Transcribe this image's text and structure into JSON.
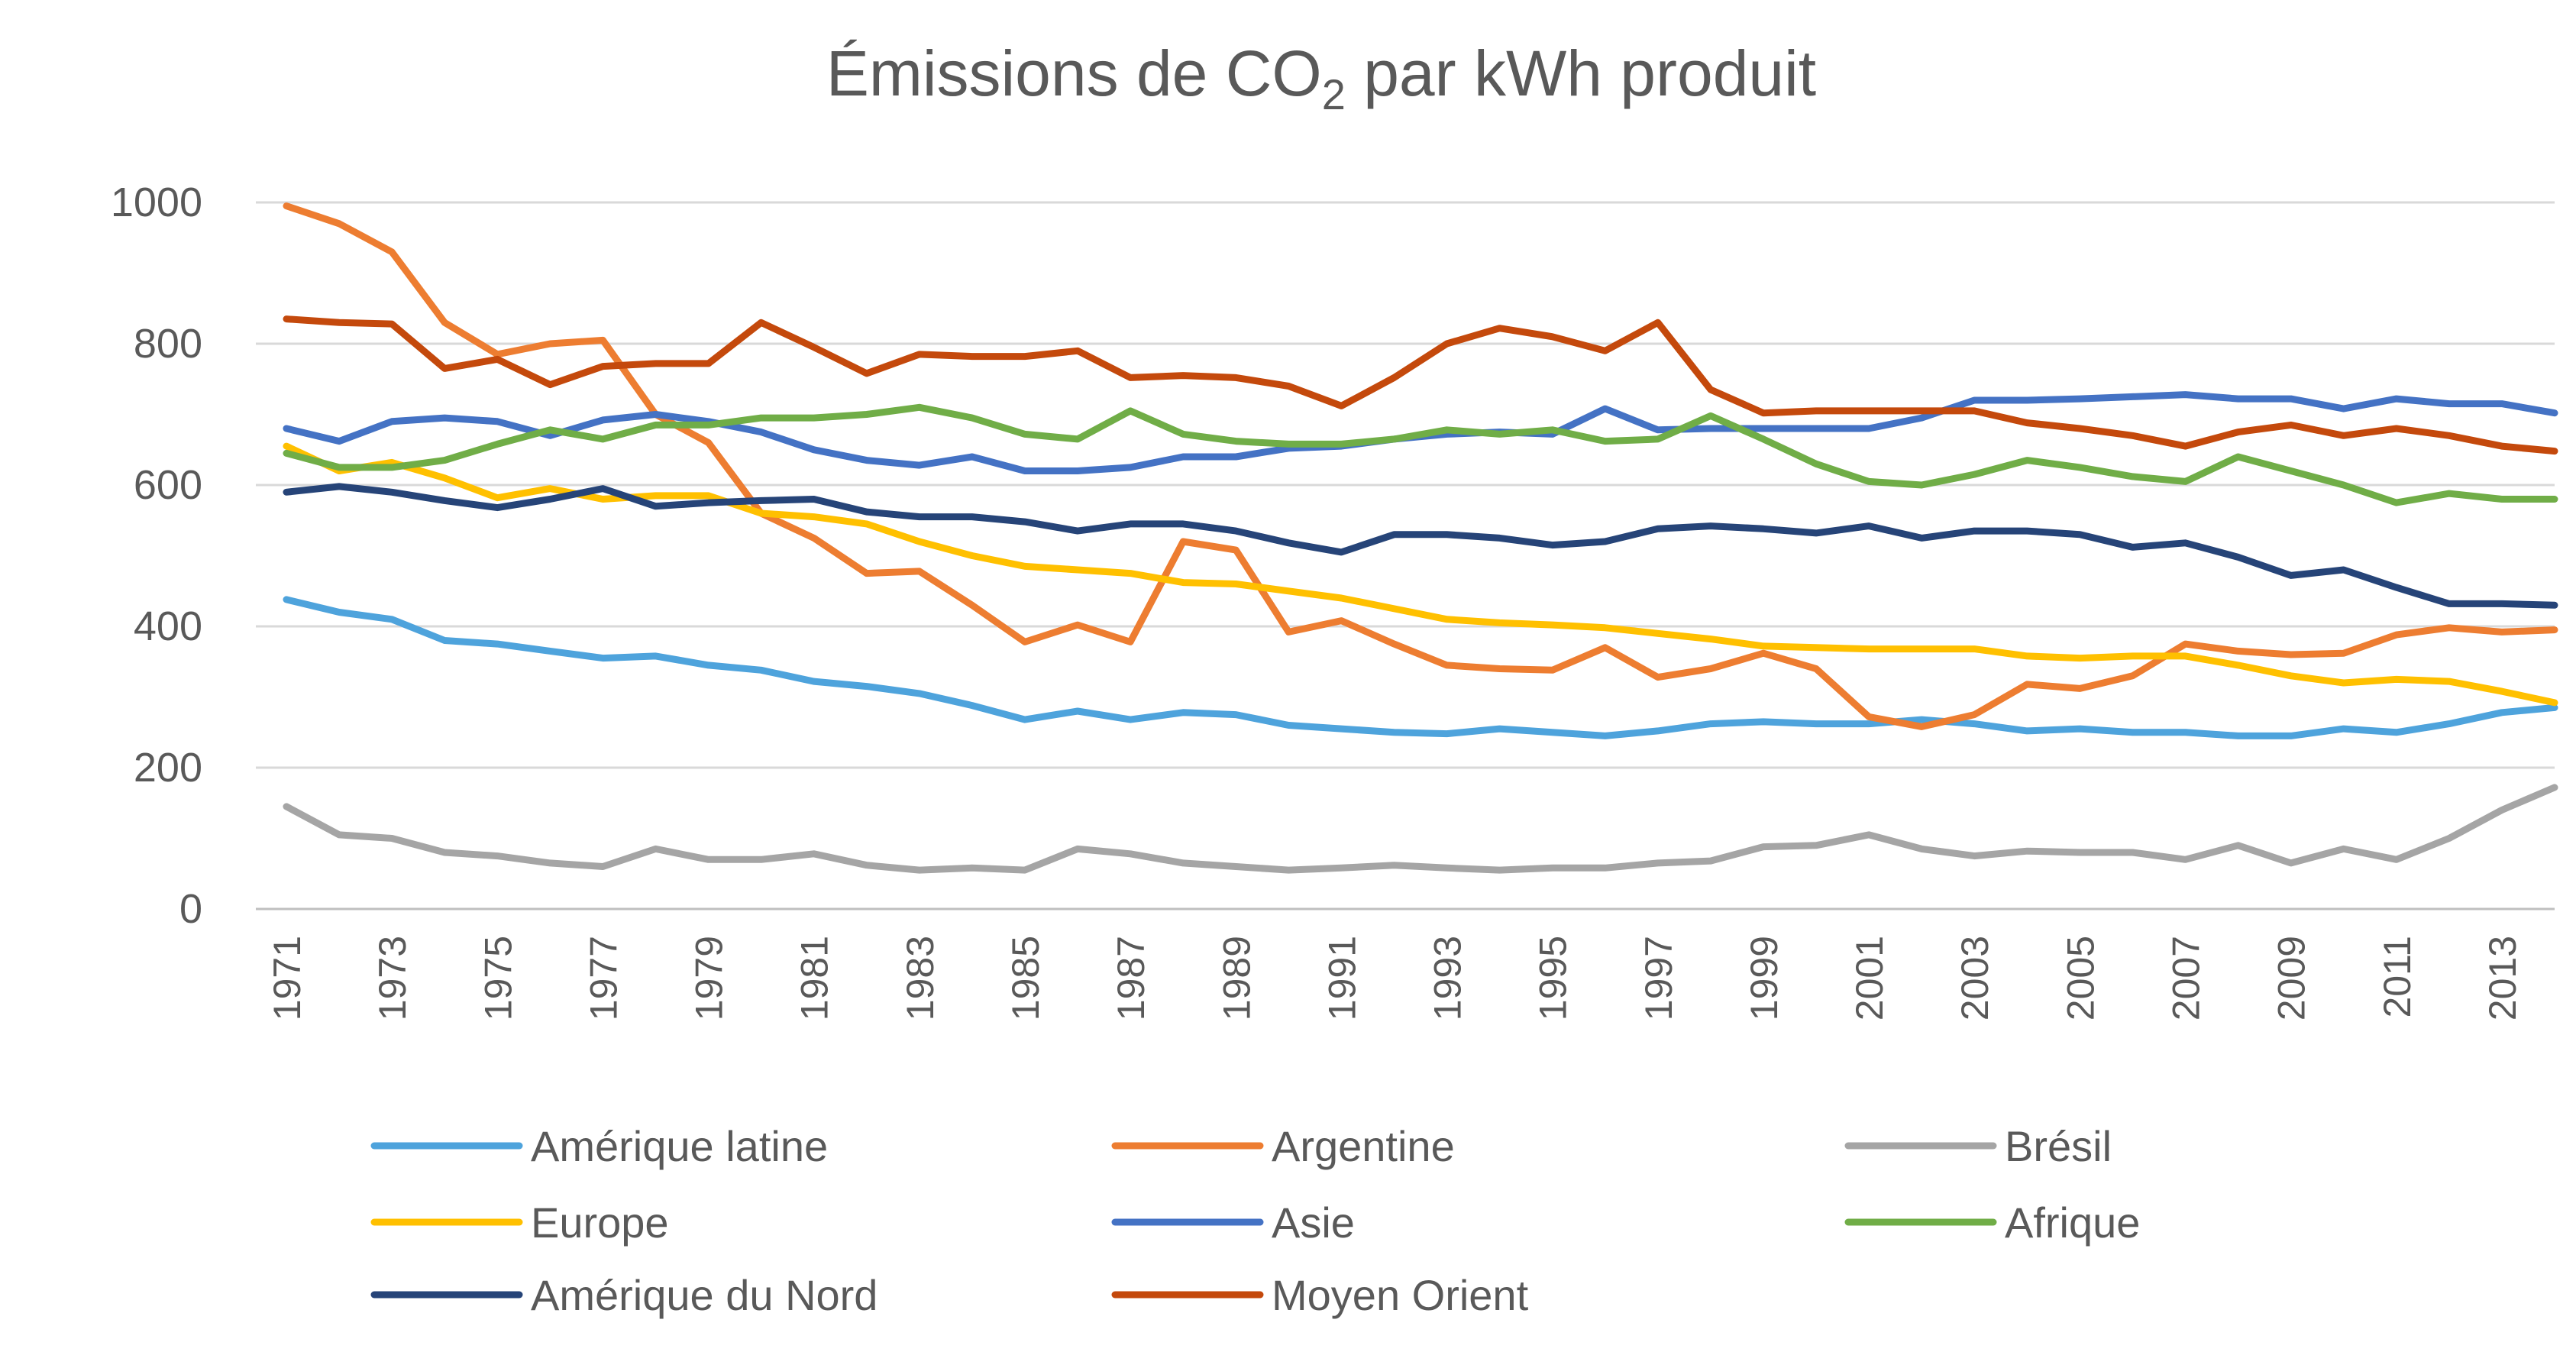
{
  "chart_data": {
    "type": "line",
    "title_main": "Émissions de CO",
    "title_sub": "2",
    "title_rest": " par kWh produit",
    "ylim": [
      0,
      1000
    ],
    "yticks": [
      0,
      200,
      400,
      600,
      800,
      1000
    ],
    "x": [
      1971,
      1972,
      1973,
      1974,
      1975,
      1976,
      1977,
      1978,
      1979,
      1980,
      1981,
      1982,
      1983,
      1984,
      1985,
      1986,
      1987,
      1988,
      1989,
      1990,
      1991,
      1992,
      1993,
      1994,
      1995,
      1996,
      1997,
      1998,
      1999,
      2000,
      2001,
      2002,
      2003,
      2004,
      2005,
      2006,
      2007,
      2008,
      2009,
      2010,
      2011,
      2012,
      2013,
      2014
    ],
    "xtick_labels": [
      1971,
      1973,
      1975,
      1977,
      1979,
      1981,
      1983,
      1985,
      1987,
      1989,
      1991,
      1993,
      1995,
      1997,
      1999,
      2001,
      2003,
      2005,
      2007,
      2009,
      2011,
      2013
    ],
    "grid": true,
    "legend_position": "bottom",
    "series": [
      {
        "name": "Amérique latine",
        "color": "#4ea3dc",
        "values": [
          438,
          420,
          410,
          380,
          375,
          365,
          355,
          358,
          345,
          338,
          322,
          315,
          305,
          288,
          268,
          280,
          268,
          278,
          275,
          260,
          255,
          250,
          248,
          255,
          250,
          245,
          252,
          262,
          265,
          262,
          262,
          268,
          262,
          252,
          255,
          250,
          250,
          245,
          245,
          255,
          250,
          262,
          278,
          285
        ]
      },
      {
        "name": "Argentine",
        "color": "#ed7d31",
        "values": [
          995,
          970,
          930,
          830,
          785,
          800,
          805,
          700,
          660,
          560,
          525,
          475,
          478,
          430,
          378,
          402,
          378,
          520,
          508,
          392,
          408,
          375,
          345,
          340,
          338,
          370,
          328,
          340,
          362,
          340,
          272,
          258,
          275,
          318,
          312,
          330,
          375,
          365,
          360,
          362,
          388,
          398,
          392,
          395
        ]
      },
      {
        "name": "Brésil",
        "color": "#a5a5a5",
        "values": [
          145,
          105,
          100,
          80,
          75,
          65,
          60,
          85,
          70,
          70,
          78,
          62,
          55,
          58,
          55,
          85,
          78,
          65,
          60,
          55,
          58,
          62,
          58,
          55,
          58,
          58,
          65,
          68,
          88,
          90,
          105,
          85,
          75,
          82,
          80,
          80,
          70,
          90,
          65,
          85,
          70,
          100,
          140,
          172
        ]
      },
      {
        "name": "Europe",
        "color": "#ffc000",
        "values": [
          655,
          620,
          632,
          610,
          582,
          595,
          580,
          585,
          585,
          560,
          555,
          545,
          520,
          500,
          485,
          480,
          475,
          462,
          460,
          450,
          440,
          425,
          410,
          405,
          402,
          398,
          390,
          382,
          372,
          370,
          368,
          368,
          368,
          358,
          355,
          358,
          358,
          345,
          330,
          320,
          325,
          322,
          308,
          292
        ]
      },
      {
        "name": "Asie",
        "color": "#4472c4",
        "values": [
          680,
          662,
          690,
          695,
          690,
          670,
          692,
          700,
          690,
          675,
          650,
          635,
          628,
          640,
          620,
          620,
          625,
          640,
          640,
          652,
          655,
          665,
          672,
          675,
          672,
          708,
          678,
          680,
          680,
          680,
          680,
          695,
          720,
          720,
          722,
          725,
          728,
          722,
          722,
          708,
          722,
          715,
          715,
          702
        ]
      },
      {
        "name": "Afrique",
        "color": "#70ad47",
        "values": [
          645,
          625,
          625,
          635,
          658,
          678,
          665,
          685,
          685,
          695,
          695,
          700,
          710,
          695,
          672,
          665,
          705,
          672,
          662,
          658,
          658,
          665,
          678,
          672,
          678,
          662,
          665,
          698,
          665,
          630,
          605,
          600,
          615,
          635,
          625,
          612,
          605,
          640,
          620,
          600,
          575,
          588,
          580,
          580
        ]
      },
      {
        "name": "Amérique du Nord",
        "color": "#264478",
        "values": [
          590,
          598,
          590,
          578,
          568,
          580,
          595,
          570,
          575,
          578,
          580,
          562,
          555,
          555,
          548,
          535,
          545,
          545,
          535,
          518,
          505,
          530,
          530,
          525,
          515,
          520,
          538,
          542,
          538,
          532,
          542,
          525,
          535,
          535,
          530,
          512,
          518,
          498,
          472,
          480,
          455,
          432,
          432,
          430
        ]
      },
      {
        "name": "Moyen Orient",
        "color": "#c4490c",
        "values": [
          835,
          830,
          828,
          765,
          778,
          742,
          768,
          772,
          772,
          830,
          795,
          758,
          785,
          782,
          782,
          790,
          752,
          755,
          752,
          740,
          712,
          752,
          800,
          822,
          810,
          790,
          830,
          735,
          702,
          705,
          705,
          705,
          705,
          688,
          680,
          670,
          655,
          675,
          685,
          670,
          680,
          670,
          655,
          648
        ]
      }
    ]
  }
}
